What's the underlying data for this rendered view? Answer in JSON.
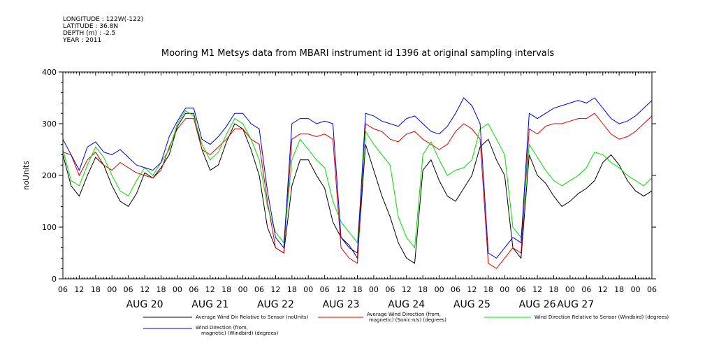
{
  "metadata": {
    "lines": [
      "LONGITUDE : 122W(-122)",
      "LATITUDE : 36.8N",
      "DEPTH (m) : -2.5",
      "YEAR : 2011"
    ]
  },
  "chart_data": {
    "type": "line",
    "title": "Mooring M1 Metsys data from MBARI instrument id 1396 at original sampling intervals",
    "ylabel": "noUnits",
    "xlabel": "",
    "ylim": [
      0,
      400
    ],
    "yticks": [
      0,
      100,
      200,
      300,
      400
    ],
    "x_unit": "hours since AUG 20 00:00",
    "xlim": [
      -18,
      198
    ],
    "hour_tick_labels": [
      "06",
      "12",
      "18",
      "00",
      "06",
      "12",
      "18",
      "00",
      "06",
      "12",
      "18",
      "00",
      "06",
      "12",
      "18",
      "00",
      "06",
      "12",
      "18",
      "00",
      "06",
      "12",
      "18",
      "00",
      "06",
      "12",
      "18",
      "00",
      "06",
      "12",
      "18",
      "00",
      "06",
      "12",
      "18",
      "00",
      "06"
    ],
    "date_labels": [
      "AUG 20",
      "AUG 21",
      "AUG 22",
      "AUG 23",
      "AUG 24",
      "AUG 25",
      "AUG 26",
      "AUG 27"
    ],
    "grid": false,
    "legend_position": "bottom",
    "series": [
      {
        "name": "Average Wind Dir Relative to Sensor (noUnits)",
        "color": "#000000",
        "x": [
          -18,
          -15,
          -12,
          -9,
          -6,
          -3,
          0,
          3,
          6,
          9,
          12,
          15,
          18,
          21,
          24,
          27,
          30,
          33,
          36,
          39,
          42,
          45,
          48,
          51,
          54,
          57,
          60,
          63,
          66,
          69,
          72,
          75,
          78,
          81,
          84,
          87,
          90,
          93,
          96,
          99,
          102,
          105,
          108,
          111,
          114,
          117,
          120,
          123,
          126,
          129,
          132,
          135,
          138,
          141,
          144,
          147,
          150,
          153,
          156,
          159,
          162,
          165,
          168,
          171,
          174,
          177,
          180,
          183,
          186,
          189,
          192,
          195,
          198
        ],
        "values": [
          240,
          180,
          160,
          200,
          235,
          220,
          180,
          150,
          140,
          165,
          205,
          195,
          215,
          240,
          295,
          320,
          320,
          250,
          210,
          220,
          265,
          300,
          290,
          250,
          200,
          100,
          60,
          50,
          180,
          230,
          230,
          200,
          175,
          110,
          80,
          65,
          40,
          260,
          210,
          160,
          120,
          70,
          40,
          30,
          210,
          230,
          190,
          160,
          150,
          175,
          200,
          255,
          270,
          230,
          200,
          60,
          40,
          240,
          200,
          185,
          160,
          140,
          150,
          165,
          175,
          190,
          225,
          240,
          220,
          190,
          170,
          160,
          170
        ]
      },
      {
        "name": "Average Wind Direction (from, magnetic) (Sonic-n/s) (degrees)",
        "color": "#e00000",
        "x": [
          -18,
          -15,
          -12,
          -9,
          -6,
          -3,
          0,
          3,
          6,
          9,
          12,
          15,
          18,
          21,
          24,
          27,
          30,
          33,
          36,
          39,
          42,
          45,
          48,
          51,
          54,
          57,
          60,
          63,
          66,
          69,
          72,
          75,
          78,
          81,
          84,
          87,
          90,
          93,
          96,
          99,
          102,
          105,
          108,
          111,
          114,
          117,
          120,
          123,
          126,
          129,
          132,
          135,
          138,
          141,
          144,
          147,
          150,
          153,
          156,
          159,
          162,
          165,
          168,
          171,
          174,
          177,
          180,
          183,
          186,
          189,
          192,
          195,
          198
        ],
        "values": [
          245,
          240,
          200,
          230,
          245,
          220,
          210,
          225,
          215,
          205,
          200,
          195,
          210,
          255,
          290,
          310,
          310,
          250,
          240,
          255,
          270,
          290,
          290,
          270,
          260,
          150,
          60,
          50,
          270,
          280,
          280,
          275,
          280,
          270,
          60,
          40,
          30,
          300,
          290,
          285,
          270,
          265,
          280,
          285,
          270,
          260,
          250,
          260,
          285,
          300,
          290,
          270,
          30,
          20,
          40,
          60,
          50,
          290,
          280,
          295,
          300,
          300,
          305,
          310,
          310,
          320,
          300,
          280,
          270,
          275,
          285,
          300,
          315
        ]
      },
      {
        "name": "Wind Direction Relative to Sensor (Windbird) (degrees)",
        "color": "#00dd00",
        "x": [
          -18,
          -15,
          -12,
          -9,
          -6,
          -3,
          0,
          3,
          6,
          9,
          12,
          15,
          18,
          21,
          24,
          27,
          30,
          33,
          36,
          39,
          42,
          45,
          48,
          51,
          54,
          57,
          60,
          63,
          66,
          69,
          72,
          75,
          78,
          81,
          84,
          87,
          90,
          93,
          96,
          99,
          102,
          105,
          108,
          111,
          114,
          117,
          120,
          123,
          126,
          129,
          132,
          135,
          138,
          141,
          144,
          147,
          150,
          153,
          156,
          159,
          162,
          165,
          168,
          171,
          174,
          177,
          180,
          183,
          186,
          189,
          192,
          195,
          198
        ],
        "values": [
          250,
          190,
          180,
          220,
          255,
          235,
          200,
          170,
          160,
          190,
          215,
          200,
          225,
          250,
          300,
          325,
          315,
          260,
          230,
          245,
          280,
          310,
          300,
          270,
          230,
          140,
          90,
          70,
          230,
          270,
          250,
          230,
          215,
          150,
          110,
          90,
          70,
          285,
          260,
          240,
          220,
          120,
          80,
          60,
          240,
          265,
          230,
          200,
          210,
          215,
          230,
          290,
          300,
          270,
          240,
          100,
          80,
          260,
          235,
          210,
          190,
          180,
          190,
          200,
          215,
          245,
          240,
          225,
          215,
          200,
          190,
          180,
          195
        ]
      },
      {
        "name": "Wind Direction (from, magnetic) (Windbird) (degrees)",
        "color": "#0000dd",
        "x": [
          -18,
          -15,
          -12,
          -9,
          -6,
          -3,
          0,
          3,
          6,
          9,
          12,
          15,
          18,
          21,
          24,
          27,
          30,
          33,
          36,
          39,
          42,
          45,
          48,
          51,
          54,
          57,
          60,
          63,
          66,
          69,
          72,
          75,
          78,
          81,
          84,
          87,
          90,
          93,
          96,
          99,
          102,
          105,
          108,
          111,
          114,
          117,
          120,
          123,
          126,
          129,
          132,
          135,
          138,
          141,
          144,
          147,
          150,
          153,
          156,
          159,
          162,
          165,
          168,
          171,
          174,
          177,
          180,
          183,
          186,
          189,
          192,
          195,
          198
        ],
        "values": [
          270,
          240,
          210,
          255,
          265,
          245,
          240,
          250,
          235,
          220,
          215,
          210,
          225,
          275,
          305,
          330,
          330,
          270,
          260,
          275,
          295,
          320,
          320,
          300,
          290,
          170,
          80,
          60,
          300,
          310,
          310,
          300,
          305,
          300,
          80,
          60,
          50,
          320,
          315,
          305,
          300,
          295,
          310,
          315,
          300,
          285,
          280,
          295,
          320,
          350,
          335,
          300,
          50,
          40,
          60,
          80,
          70,
          320,
          310,
          320,
          330,
          335,
          340,
          345,
          340,
          350,
          330,
          310,
          300,
          305,
          315,
          330,
          345
        ]
      }
    ]
  }
}
